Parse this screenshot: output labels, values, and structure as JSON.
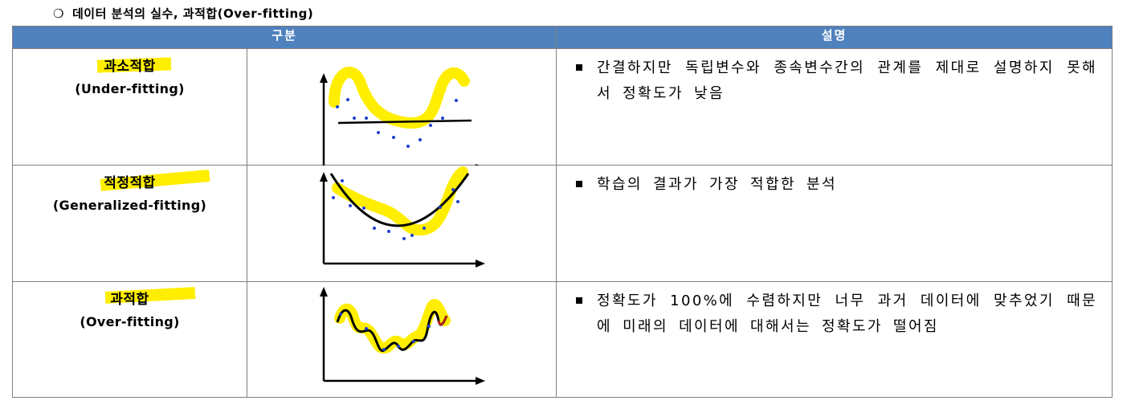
{
  "title": {
    "bullet": "❍",
    "text": "데이터 분석의 실수, 과적합(Over-fitting)"
  },
  "table": {
    "headers": [
      "구분",
      "설명"
    ],
    "rows": [
      {
        "name_ko": "과소적합",
        "name_en": "(Under-fitting)",
        "description": "간결하지만 독립변수와 종속변수간의 관계를 제대로 설명하지 못해서 정확도가 낮음"
      },
      {
        "name_ko": "적정적합",
        "name_en": "(Generalized-fitting)",
        "description": "학습의 결과가 가장 적합한 분석"
      },
      {
        "name_ko": "과적합",
        "name_en": "(Over-fitting)",
        "description": "정확도가 100%에 수렴하지만 너무 과거 데이터에 맞추었기 때문에 미래의 데이터에 대해서는 정확도가 떨어짐"
      }
    ]
  },
  "colors": {
    "header_bg": "#4f81bd",
    "highlight": "#ffee00",
    "fit_line": "#000000",
    "points": "#1f3fd0"
  }
}
